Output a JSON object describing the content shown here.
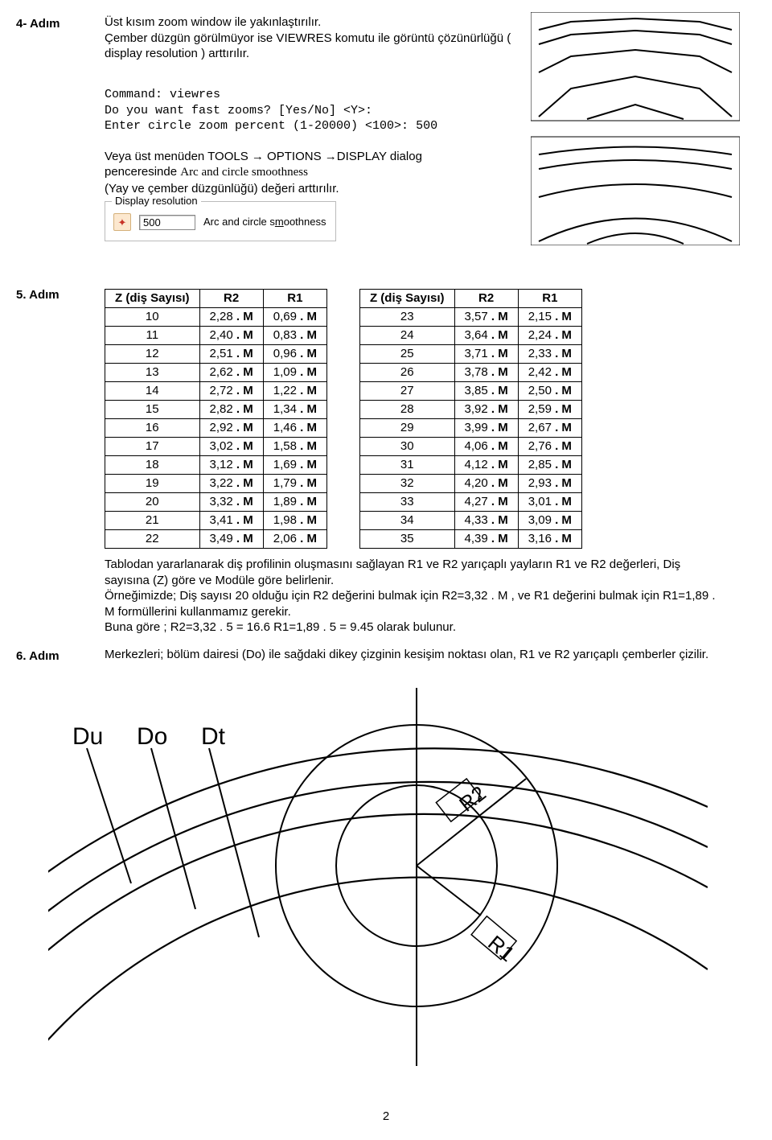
{
  "step4": {
    "label": "4- Adım",
    "p1": "Üst kısım zoom window ile yakınlaştırılır.",
    "p2": "Çember düzgün görülmüyor ise VIEWRES komutu ile görüntü çözünürlüğü ( display resolution ) arttırılır.",
    "cmd1": "Command: viewres",
    "cmd2": "Do you want fast zooms? [Yes/No] <Y>:",
    "cmd3": "Enter circle zoom percent (1-20000) <100>: 500",
    "p3a": "Veya üst menüden TOOLS → OPTIONS →DISPLAY  dialog penceresinde ",
    "p3serif": "Arc and circle smoothness",
    "p3b": " (Yay ve çember düzgünlüğü)  değeri arttırılır."
  },
  "dispres": {
    "legend": "Display resolution",
    "value": "500",
    "label": "Arc and circle smoothness"
  },
  "step5": {
    "label": "5. Adım",
    "headers": {
      "z": "Z (diş Sayısı)",
      "r2": "R2",
      "r1": "R1"
    },
    "left": [
      {
        "z": "10",
        "r2": "2,28",
        "r1": "0,69"
      },
      {
        "z": "11",
        "r2": "2,40",
        "r1": "0,83"
      },
      {
        "z": "12",
        "r2": "2,51",
        "r1": "0,96"
      },
      {
        "z": "13",
        "r2": "2,62",
        "r1": "1,09"
      },
      {
        "z": "14",
        "r2": "2,72",
        "r1": "1,22"
      },
      {
        "z": "15",
        "r2": "2,82",
        "r1": "1,34"
      },
      {
        "z": "16",
        "r2": "2,92",
        "r1": "1,46"
      },
      {
        "z": "17",
        "r2": "3,02",
        "r1": "1,58"
      },
      {
        "z": "18",
        "r2": "3,12",
        "r1": "1,69"
      },
      {
        "z": "19",
        "r2": "3,22",
        "r1": "1,79"
      },
      {
        "z": "20",
        "r2": "3,32",
        "r1": "1,89"
      },
      {
        "z": "21",
        "r2": "3,41",
        "r1": "1,98"
      },
      {
        "z": "22",
        "r2": "3,49",
        "r1": "2,06"
      }
    ],
    "right": [
      {
        "z": "23",
        "r2": "3,57",
        "r1": "2,15"
      },
      {
        "z": "24",
        "r2": "3,64",
        "r1": "2,24"
      },
      {
        "z": "25",
        "r2": "3,71",
        "r1": "2,33"
      },
      {
        "z": "26",
        "r2": "3,78",
        "r1": "2,42"
      },
      {
        "z": "27",
        "r2": "3,85",
        "r1": "2,50"
      },
      {
        "z": "28",
        "r2": "3,92",
        "r1": "2,59"
      },
      {
        "z": "29",
        "r2": "3,99",
        "r1": "2,67"
      },
      {
        "z": "30",
        "r2": "4,06",
        "r1": "2,76"
      },
      {
        "z": "31",
        "r2": "4,12",
        "r1": "2,85"
      },
      {
        "z": "32",
        "r2": "4,20",
        "r1": "2,93"
      },
      {
        "z": "33",
        "r2": "4,27",
        "r1": "3,01"
      },
      {
        "z": "34",
        "r2": "4,33",
        "r1": "3,09"
      },
      {
        "z": "35",
        "r2": "4,39",
        "r1": "3,16"
      }
    ],
    "mSuffix": ". M",
    "p1": "Tablodan yararlanarak diş profilinin oluşmasını sağlayan R1 ve R2 yarıçaplı yayların R1 ve R2 değerleri, Diş sayısına (Z)  göre ve Modüle göre belirlenir.",
    "p2": " Örneğimizde; Diş sayısı 20 olduğu için R2 değerini bulmak için  R2=3,32 . M  ,  ve R1 değerini bulmak için   R1=1,89 . M    formüllerini kullanmamız gerekir.",
    "p3": "Buna göre ;   R2=3,32 . 5 = 16.6             R1=1,89 . 5  = 9.45   olarak bulunur."
  },
  "step6": {
    "label": "6. Adım",
    "p1": "Merkezleri; bölüm dairesi (Do) ile sağdaki dikey çizginin kesişim noktası olan, R1 ve R2 yarıçaplı çemberler çizilir."
  },
  "labels_fig": {
    "du": "Du",
    "do": "Do",
    "dt": "Dt",
    "r1": "R1",
    "r2": "R2"
  },
  "page_number": "2",
  "colors": {
    "text": "#000000",
    "border": "#000000",
    "box_border": "#bbbbbb",
    "icon_bg": "#fce8cf",
    "icon_border": "#d4b07a",
    "icon_fg": "#c83228"
  }
}
